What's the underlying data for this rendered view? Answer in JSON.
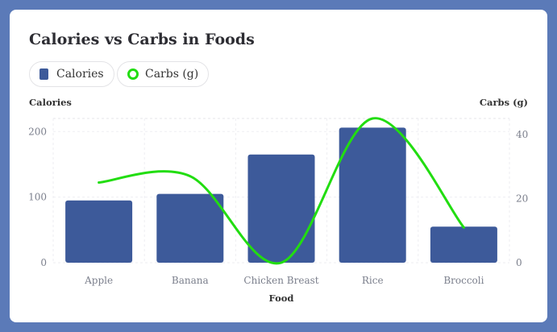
{
  "chart_data": {
    "type": "bar+line",
    "title": "Calories vs Carbs in Foods",
    "categories": [
      "Apple",
      "Banana",
      "Chicken Breast",
      "Rice",
      "Broccoli"
    ],
    "series": [
      {
        "name": "Calories",
        "type": "bar",
        "axis": "left",
        "values": [
          95,
          105,
          165,
          206,
          55
        ]
      },
      {
        "name": "Carbs (g)",
        "type": "line",
        "axis": "right",
        "values": [
          25,
          27,
          0,
          45,
          11
        ]
      }
    ],
    "xlabel": "Food",
    "ylabel": "Calories",
    "ylabel_right": "Carbs (g)",
    "ylim": [
      0,
      220
    ],
    "ylim_right": [
      0,
      45
    ],
    "yticks": [
      0,
      100,
      200
    ],
    "yticks_right": [
      0,
      20,
      40
    ],
    "legend": "top-left",
    "grid": true,
    "colors": {
      "bar": "#3d5a9a",
      "line": "#22dd11"
    }
  }
}
